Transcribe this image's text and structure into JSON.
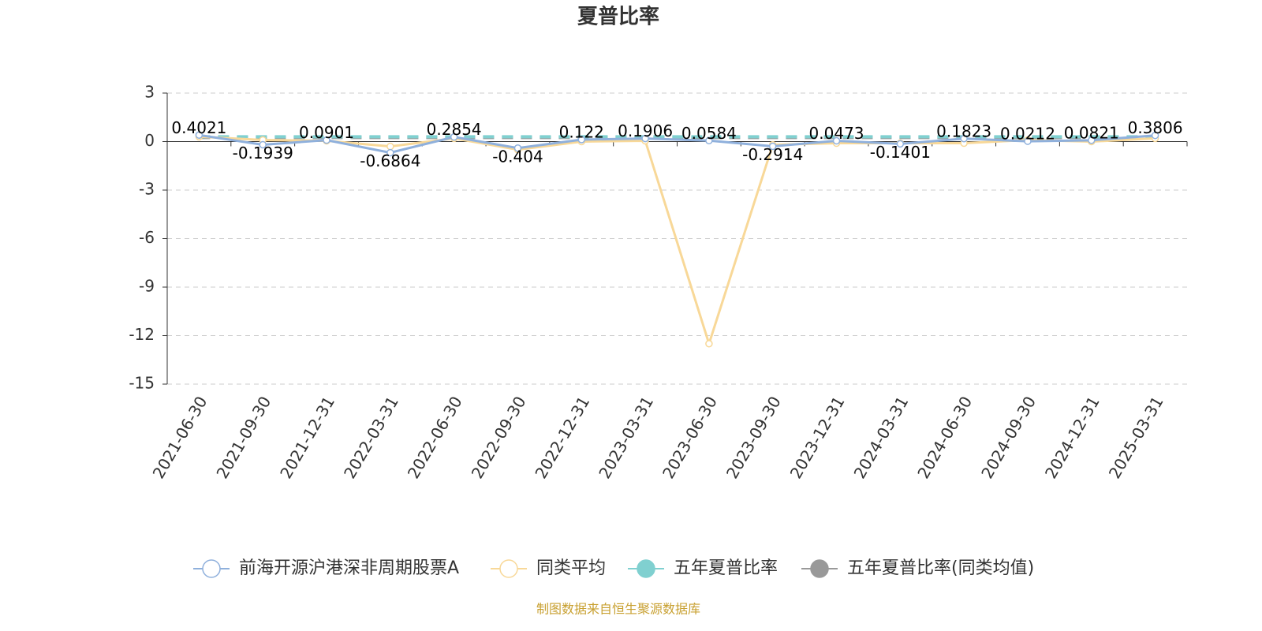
{
  "chart_data": {
    "type": "line",
    "title": "夏普比率",
    "categories": [
      "2021-06-30",
      "2021-09-30",
      "2021-12-31",
      "2022-03-31",
      "2022-06-30",
      "2022-09-30",
      "2022-12-31",
      "2023-03-31",
      "2023-06-30",
      "2023-09-30",
      "2023-12-31",
      "2024-03-31",
      "2024-06-30",
      "2024-09-30",
      "2024-12-31",
      "2025-03-31"
    ],
    "series": [
      {
        "name": "前海开源沪港深非周期股票A",
        "color": "#8fb0dc",
        "marker": "open",
        "labels": true,
        "values": [
          0.4021,
          -0.1939,
          0.0901,
          -0.6864,
          0.2854,
          -0.404,
          0.122,
          0.1906,
          0.0584,
          -0.2914,
          0.0473,
          -0.1401,
          0.1823,
          0.0212,
          0.0821,
          0.3806
        ]
      },
      {
        "name": "同类平均",
        "color": "#f8d898",
        "marker": "open",
        "values": [
          0.3,
          0.1,
          0.05,
          -0.3,
          0.2,
          -0.5,
          0.0,
          0.05,
          -12.5,
          -0.2,
          -0.1,
          -0.1,
          -0.1,
          0.1,
          0.0,
          0.2
        ]
      },
      {
        "name": "五年夏普比率",
        "color": "#80d0d0",
        "marker": "filled",
        "dashed": true,
        "values": [
          0.3,
          0.3,
          0.3,
          0.3,
          0.3,
          0.3,
          0.3,
          0.3,
          0.3,
          0.3,
          0.3,
          0.3,
          0.3,
          0.3,
          0.3,
          0.3
        ]
      },
      {
        "name": "五年夏普比率(同类均值)",
        "color": "#999999",
        "marker": "filled",
        "dashed": true,
        "values": [
          0.25,
          0.25,
          0.25,
          0.25,
          0.25,
          0.25,
          0.25,
          0.25,
          0.25,
          0.25,
          0.25,
          0.25,
          0.25,
          0.25,
          0.25,
          0.25
        ]
      }
    ],
    "ylim": [
      -15,
      3
    ],
    "yticks": [
      -15,
      -12,
      -9,
      -6,
      -3,
      0,
      3
    ],
    "grid": true,
    "note": "制图数据来自恒生聚源数据库"
  }
}
